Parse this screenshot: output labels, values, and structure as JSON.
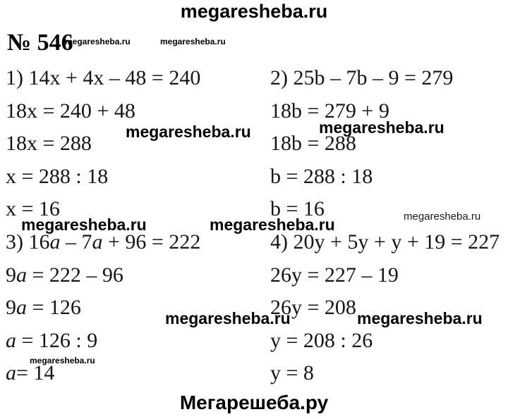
{
  "site": {
    "header": "megaresheba.ru",
    "watermark": "megaresheba.ru",
    "footer": "Мегарешеба.ру"
  },
  "problem": {
    "number": "№ 546"
  },
  "colors": {
    "text": "#161616",
    "background": "#ffffff"
  },
  "columns": [
    {
      "lines": [
        {
          "segments": [
            {
              "t": "1) 14x + 4x – 48 = 240"
            }
          ]
        },
        {
          "segments": [
            {
              "t": "18x = 240 + 48"
            }
          ]
        },
        {
          "segments": [
            {
              "t": "18x = 288"
            }
          ]
        },
        {
          "segments": [
            {
              "t": "x = 288 : 18"
            }
          ]
        },
        {
          "segments": [
            {
              "t": "x = 16"
            }
          ]
        },
        {
          "segments": [
            {
              "t": "3) 16"
            },
            {
              "t": "a",
              "i": true
            },
            {
              "t": " – 7"
            },
            {
              "t": "a",
              "i": true
            },
            {
              "t": " + 96 = 222"
            }
          ]
        },
        {
          "segments": [
            {
              "t": "9"
            },
            {
              "t": "a",
              "i": true
            },
            {
              "t": " = 222 – 96"
            }
          ]
        },
        {
          "segments": [
            {
              "t": "9"
            },
            {
              "t": "a",
              "i": true
            },
            {
              "t": " = 126"
            }
          ]
        },
        {
          "segments": [
            {
              "t": "a",
              "i": true
            },
            {
              "t": " = 126 : 9"
            }
          ]
        },
        {
          "segments": [
            {
              "t": "a",
              "i": true
            },
            {
              "t": "= 14"
            }
          ]
        }
      ]
    },
    {
      "lines": [
        {
          "segments": [
            {
              "t": "2) 25b – 7b – 9 = 279"
            }
          ]
        },
        {
          "segments": [
            {
              "t": "18b = 279 + 9"
            }
          ]
        },
        {
          "segments": [
            {
              "t": "18b = 288"
            }
          ]
        },
        {
          "segments": [
            {
              "t": "b = 288 : 18"
            }
          ]
        },
        {
          "segments": [
            {
              "t": "b = 16"
            }
          ]
        },
        {
          "segments": [
            {
              "t": "4) 20y + 5y + y + 19 = 227"
            }
          ]
        },
        {
          "segments": [
            {
              "t": "26y = 227 – 19"
            }
          ]
        },
        {
          "segments": [
            {
              "t": "26y = 208"
            }
          ]
        },
        {
          "segments": [
            {
              "t": "y = 208 : 26"
            }
          ]
        },
        {
          "segments": [
            {
              "t": "y = 8"
            }
          ]
        }
      ]
    }
  ]
}
